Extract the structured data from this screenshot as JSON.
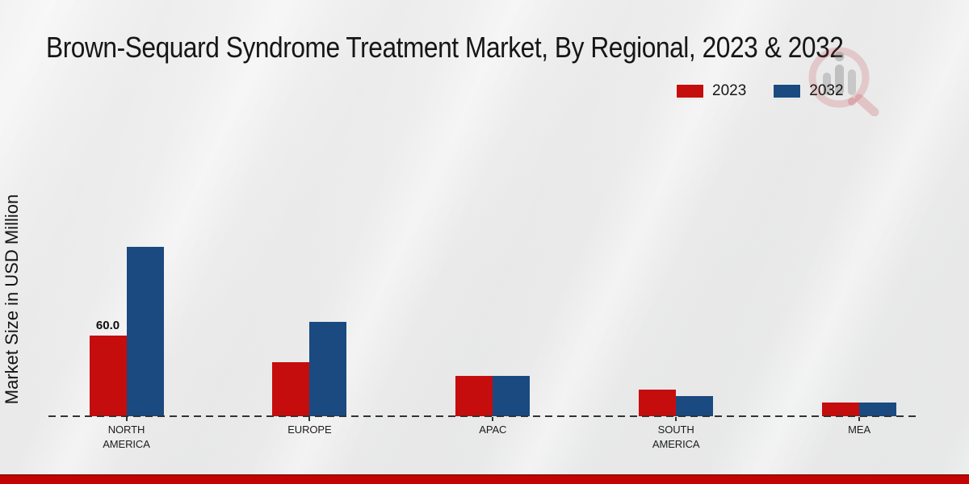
{
  "page": {
    "title": "Brown-Sequard Syndrome Treatment Market, By Regional, 2023 & 2032"
  },
  "legend": {
    "items": [
      {
        "label": "2023",
        "color": "#c50d0e"
      },
      {
        "label": "2032",
        "color": "#1a4a80"
      }
    ]
  },
  "icons": {
    "watermark": "magnifier-analytics-logo"
  },
  "chart_data": {
    "type": "bar",
    "title": "Brown-Sequard Syndrome Treatment Market, By Regional, 2023 & 2032",
    "xlabel": "",
    "ylabel": "Market Size in USD Million",
    "categories": [
      "NORTH\nAMERICA",
      "EUROPE",
      "APAC",
      "SOUTH\nAMERICA",
      "MEA"
    ],
    "series": [
      {
        "name": "2023",
        "color": "#c50d0e",
        "values": [
          60,
          40,
          30,
          20,
          10
        ]
      },
      {
        "name": "2032",
        "color": "#1a4a80",
        "values": [
          126,
          70,
          30,
          15,
          10
        ]
      }
    ],
    "bar_labels": [
      {
        "category_index": 0,
        "series_index": 0,
        "text": "60.0"
      }
    ],
    "ylim": [
      0,
      140
    ],
    "grid": false,
    "axis_style": "dashed-baseline-only",
    "legend_position": "top-right"
  },
  "footer": {
    "bar_color": "#c20404"
  }
}
